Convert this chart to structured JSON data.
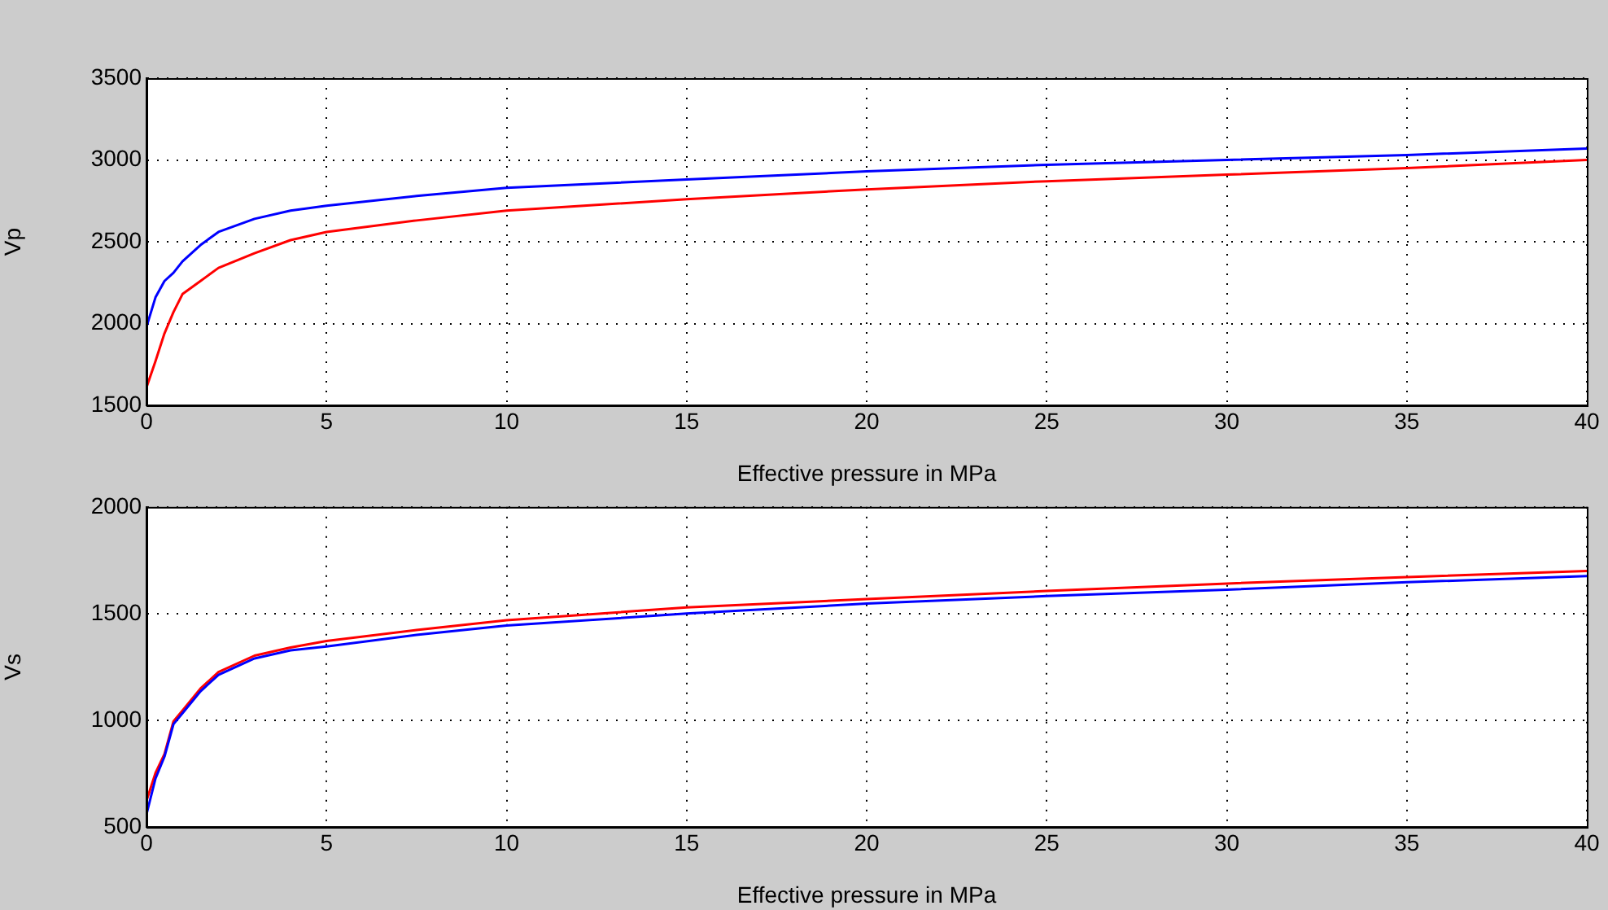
{
  "chart_data": [
    {
      "type": "line",
      "xlabel": "Effective pressure in MPa",
      "ylabel": "Vp",
      "x": [
        0,
        0.25,
        0.5,
        0.75,
        1,
        1.5,
        2,
        3,
        4,
        5,
        7.5,
        10,
        15,
        20,
        25,
        30,
        35,
        40
      ],
      "series": [
        {
          "color": "#0000ff",
          "values": [
            1980,
            2160,
            2260,
            2310,
            2380,
            2480,
            2560,
            2640,
            2690,
            2720,
            2780,
            2830,
            2880,
            2930,
            2970,
            3000,
            3030,
            3070
          ]
        },
        {
          "color": "#ff0000",
          "values": [
            1610,
            1770,
            1940,
            2070,
            2180,
            2260,
            2340,
            2430,
            2510,
            2560,
            2630,
            2690,
            2760,
            2820,
            2870,
            2910,
            2950,
            3000
          ]
        }
      ],
      "xlim": [
        0,
        40
      ],
      "xticks": [
        0,
        5,
        10,
        15,
        20,
        25,
        30,
        35,
        40
      ],
      "ylim": [
        1500,
        3500
      ],
      "yticks": [
        1500,
        2000,
        2500,
        3000,
        3500
      ],
      "grid": true,
      "legend": false,
      "marker": "none",
      "line_style": "solid"
    },
    {
      "type": "line",
      "xlabel": "Effective pressure in MPa",
      "ylabel": "Vs",
      "x": [
        0,
        0.25,
        0.5,
        0.75,
        1,
        1.5,
        2,
        3,
        4,
        5,
        7.5,
        10,
        15,
        20,
        25,
        30,
        35,
        40
      ],
      "series": [
        {
          "color": "#0000ff",
          "values": [
            560,
            727,
            830,
            982,
            1033,
            1136,
            1213,
            1290,
            1328,
            1346,
            1400,
            1444,
            1500,
            1547,
            1582,
            1612,
            1647,
            1676
          ]
        },
        {
          "color": "#ff0000",
          "values": [
            623,
            753,
            842,
            995,
            1046,
            1149,
            1226,
            1303,
            1341,
            1372,
            1423,
            1469,
            1529,
            1568,
            1606,
            1641,
            1671,
            1700
          ]
        }
      ],
      "xlim": [
        0,
        40
      ],
      "xticks": [
        0,
        5,
        10,
        15,
        20,
        25,
        30,
        35,
        40
      ],
      "ylim": [
        500,
        2000
      ],
      "yticks": [
        500,
        1000,
        1500,
        2000
      ],
      "grid": true,
      "legend": false,
      "marker": "none",
      "line_style": "solid"
    }
  ]
}
